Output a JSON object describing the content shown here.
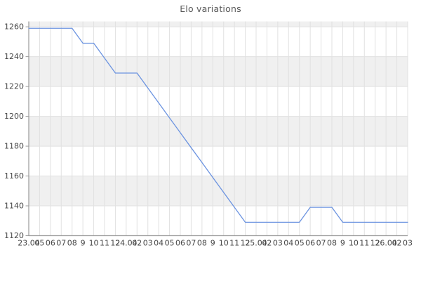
{
  "title": "Elo variations",
  "chart_data": {
    "type": "line",
    "title": "Elo variations",
    "xlabel": "",
    "ylabel": "",
    "legend_position": "none",
    "grid": true,
    "series_name": "Elo",
    "x_labels": [
      "23.04",
      "05",
      "06",
      "07",
      "08",
      "9",
      "10",
      "11",
      "12",
      "24.04",
      "02",
      "03",
      "04",
      "05",
      "06",
      "07",
      "08",
      "9",
      "10",
      "11",
      "12",
      "25.04",
      "02",
      "03",
      "04",
      "05",
      "06",
      "07",
      "08",
      "9",
      "10",
      "11",
      "12",
      "26.04",
      "02",
      "03"
    ],
    "values": [
      1259,
      1259,
      1259,
      1259,
      1259,
      1249,
      1249,
      1239,
      1229,
      1229,
      1229,
      1219,
      1209,
      1199,
      1189,
      1179,
      1169,
      1159,
      1149,
      1139,
      1129,
      1129,
      1129,
      1129,
      1129,
      1129,
      1139,
      1139,
      1139,
      1129,
      1129,
      1129,
      1129,
      1129,
      1129,
      1129
    ],
    "yticks": [
      1120,
      1140,
      1160,
      1180,
      1200,
      1220,
      1240,
      1260
    ],
    "ylim": [
      1120,
      1263.6
    ],
    "band_start_ticks": [
      1140,
      1180,
      1220,
      1260
    ],
    "colors": {
      "line": "#6b93e0",
      "band": "#f0f0f0",
      "gridline": "#e1e1e1",
      "axis": "#9a9a9a",
      "tick_label": "#474747",
      "title": "#595959",
      "background": "#ffffff"
    }
  }
}
